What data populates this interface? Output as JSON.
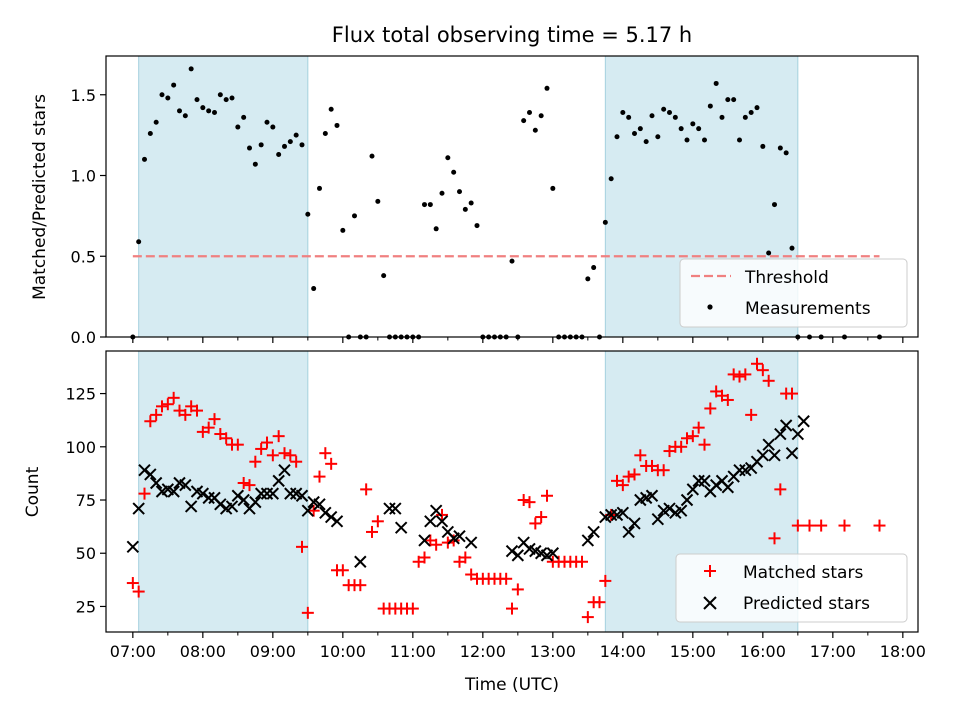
{
  "chart_data": [
    {
      "type": "scatter",
      "title": "Flux total observing time = 5.17 h",
      "xlabel": "",
      "ylabel": "Matched/Predicted stars",
      "xlim": [
        "06:37",
        "18:13"
      ],
      "ylim": [
        0,
        1.74
      ],
      "yticks": [
        0.0,
        0.5,
        1.0,
        1.5
      ],
      "ytick_labels": [
        "0.0",
        "0.5",
        "1.0",
        "1.5"
      ],
      "shaded_intervals": [
        [
          "07:05",
          "09:30"
        ],
        [
          "13:45",
          "16:30"
        ]
      ],
      "legend": {
        "position": "lower-right",
        "entries": [
          "Threshold",
          "Measurements"
        ]
      },
      "threshold": {
        "name": "Threshold",
        "y": 0.5,
        "x_range": [
          "07:00",
          "17:40"
        ]
      },
      "series": [
        {
          "name": "Measurements",
          "x": [
            "07:00",
            "07:05",
            "07:10",
            "07:15",
            "07:20",
            "07:25",
            "07:30",
            "07:35",
            "07:40",
            "07:45",
            "07:50",
            "07:55",
            "08:00",
            "08:05",
            "08:10",
            "08:15",
            "08:20",
            "08:25",
            "08:30",
            "08:35",
            "08:40",
            "08:45",
            "08:50",
            "08:55",
            "09:00",
            "09:05",
            "09:10",
            "09:15",
            "09:20",
            "09:25",
            "09:30",
            "09:35",
            "09:40",
            "09:45",
            "09:50",
            "09:55",
            "10:00",
            "10:05",
            "10:10",
            "10:15",
            "10:20",
            "10:25",
            "10:30",
            "10:35",
            "10:40",
            "10:45",
            "10:50",
            "10:55",
            "11:00",
            "11:05",
            "11:10",
            "11:15",
            "11:20",
            "11:25",
            "11:30",
            "11:35",
            "11:40",
            "11:45",
            "11:50",
            "11:55",
            "12:00",
            "12:05",
            "12:10",
            "12:15",
            "12:20",
            "12:25",
            "12:30",
            "12:35",
            "12:40",
            "12:45",
            "12:50",
            "12:55",
            "13:00",
            "13:05",
            "13:10",
            "13:15",
            "13:20",
            "13:25",
            "13:30",
            "13:35",
            "13:40",
            "13:45",
            "13:50",
            "13:55",
            "14:00",
            "14:05",
            "14:10",
            "14:15",
            "14:20",
            "14:25",
            "14:30",
            "14:35",
            "14:40",
            "14:45",
            "14:50",
            "14:55",
            "15:00",
            "15:05",
            "15:10",
            "15:15",
            "15:20",
            "15:25",
            "15:30",
            "15:35",
            "15:40",
            "15:45",
            "15:50",
            "15:55",
            "16:00",
            "16:05",
            "16:10",
            "16:15",
            "16:20",
            "16:25",
            "16:30",
            "16:40",
            "16:50",
            "17:10",
            "17:40"
          ],
          "y": [
            0.0,
            0.59,
            1.1,
            1.26,
            1.33,
            1.5,
            1.48,
            1.56,
            1.4,
            1.37,
            1.66,
            1.47,
            1.42,
            1.4,
            1.39,
            1.5,
            1.47,
            1.48,
            1.3,
            1.36,
            1.17,
            1.07,
            1.19,
            1.33,
            1.3,
            1.13,
            1.18,
            1.21,
            1.25,
            1.19,
            0.76,
            0.3,
            0.92,
            1.26,
            1.41,
            1.31,
            0.66,
            0.0,
            0.75,
            0.0,
            0.0,
            1.12,
            0.84,
            0.38,
            0.0,
            0.0,
            0.0,
            0.0,
            0.0,
            0.0,
            0.82,
            0.82,
            0.67,
            0.89,
            1.11,
            1.02,
            0.9,
            0.79,
            0.83,
            0.69,
            0.0,
            0.0,
            0.0,
            0.0,
            0.0,
            0.47,
            0.0,
            1.34,
            1.39,
            1.28,
            1.37,
            1.54,
            0.92,
            0.0,
            0.0,
            0.0,
            0.0,
            0.0,
            0.36,
            0.43,
            0.0,
            0.71,
            0.98,
            1.24,
            1.39,
            1.36,
            1.26,
            1.29,
            1.21,
            1.37,
            1.24,
            1.41,
            1.39,
            1.36,
            1.29,
            1.22,
            1.32,
            1.29,
            1.22,
            1.43,
            1.57,
            1.36,
            1.47,
            1.47,
            1.22,
            1.36,
            1.39,
            1.42,
            1.18,
            0.52,
            0.82,
            1.17,
            1.14,
            0.55,
            0.0,
            0.0,
            0.0,
            0.0,
            0.0
          ]
        }
      ]
    },
    {
      "type": "scatter",
      "title": "",
      "xlabel": "Time (UTC)",
      "ylabel": "Count",
      "xlim": [
        "06:37",
        "18:13"
      ],
      "ylim": [
        13,
        145
      ],
      "yticks": [
        25,
        50,
        75,
        100,
        125
      ],
      "ytick_labels": [
        "25",
        "50",
        "75",
        "100",
        "125"
      ],
      "xticks": [
        "07:00",
        "08:00",
        "09:00",
        "10:00",
        "11:00",
        "12:00",
        "13:00",
        "14:00",
        "15:00",
        "16:00",
        "17:00",
        "18:00"
      ],
      "shaded_intervals": [
        [
          "07:05",
          "09:30"
        ],
        [
          "13:45",
          "16:30"
        ]
      ],
      "legend": {
        "position": "lower-right",
        "entries": [
          "Matched stars",
          "Predicted stars"
        ]
      },
      "series": [
        {
          "name": "Matched stars",
          "marker": "+",
          "color": "#ff0000",
          "x": [
            "07:00",
            "07:05",
            "07:10",
            "07:15",
            "07:20",
            "07:25",
            "07:30",
            "07:35",
            "07:40",
            "07:45",
            "07:50",
            "07:55",
            "08:00",
            "08:05",
            "08:10",
            "08:15",
            "08:20",
            "08:25",
            "08:30",
            "08:35",
            "08:40",
            "08:45",
            "08:50",
            "08:55",
            "09:00",
            "09:05",
            "09:10",
            "09:15",
            "09:20",
            "09:25",
            "09:30",
            "09:35",
            "09:40",
            "09:45",
            "09:50",
            "09:55",
            "10:00",
            "10:05",
            "10:10",
            "10:15",
            "10:20",
            "10:25",
            "10:30",
            "10:35",
            "10:40",
            "10:45",
            "10:50",
            "10:55",
            "11:00",
            "11:05",
            "11:10",
            "11:15",
            "11:20",
            "11:25",
            "11:30",
            "11:35",
            "11:40",
            "11:45",
            "11:50",
            "11:55",
            "12:00",
            "12:05",
            "12:10",
            "12:15",
            "12:20",
            "12:25",
            "12:30",
            "12:35",
            "12:40",
            "12:45",
            "12:50",
            "12:55",
            "13:00",
            "13:05",
            "13:10",
            "13:15",
            "13:20",
            "13:25",
            "13:30",
            "13:35",
            "13:40",
            "13:45",
            "13:50",
            "13:55",
            "14:00",
            "14:05",
            "14:10",
            "14:15",
            "14:20",
            "14:25",
            "14:30",
            "14:35",
            "14:40",
            "14:45",
            "14:50",
            "14:55",
            "15:00",
            "15:05",
            "15:10",
            "15:15",
            "15:20",
            "15:25",
            "15:30",
            "15:35",
            "15:40",
            "15:45",
            "15:50",
            "15:55",
            "16:00",
            "16:05",
            "16:10",
            "16:15",
            "16:20",
            "16:25",
            "16:30",
            "16:40",
            "16:50",
            "17:10",
            "17:40"
          ],
          "y": [
            36,
            32,
            78,
            112,
            115,
            119,
            120,
            123,
            117,
            115,
            119,
            117,
            107,
            109,
            113,
            106,
            104,
            101,
            101,
            83,
            82,
            93,
            99,
            102,
            96,
            105,
            97,
            96,
            93,
            53,
            22,
            70,
            86,
            97,
            92,
            42,
            42,
            35,
            35,
            35,
            80,
            60,
            65,
            24,
            24,
            24,
            24,
            24,
            24,
            46,
            48,
            56,
            54,
            68,
            55,
            56,
            46,
            48,
            40,
            38,
            38,
            38,
            38,
            38,
            38,
            24,
            33,
            75,
            74,
            64,
            67,
            77,
            46,
            46,
            46,
            46,
            46,
            46,
            20,
            27,
            27,
            37,
            68,
            84,
            82,
            86,
            87,
            96,
            91,
            91,
            89,
            89,
            98,
            100,
            100,
            104,
            105,
            109,
            101,
            118,
            126,
            124,
            122,
            134,
            133,
            134,
            115,
            139,
            136,
            131,
            57,
            80,
            125,
            125,
            63,
            63,
            63,
            63,
            63
          ]
        },
        {
          "name": "Predicted stars",
          "marker": "x",
          "color": "#000000",
          "x": [
            "07:00",
            "07:05",
            "07:10",
            "07:15",
            "07:20",
            "07:25",
            "07:30",
            "07:35",
            "07:40",
            "07:45",
            "07:50",
            "07:55",
            "08:00",
            "08:05",
            "08:10",
            "08:15",
            "08:20",
            "08:25",
            "08:30",
            "08:35",
            "08:40",
            "08:45",
            "08:50",
            "08:55",
            "09:00",
            "09:05",
            "09:10",
            "09:15",
            "09:20",
            "09:25",
            "09:30",
            "09:35",
            "09:40",
            "09:45",
            "09:50",
            "09:55",
            "10:15",
            "10:40",
            "10:45",
            "10:50",
            "11:10",
            "11:15",
            "11:20",
            "11:25",
            "11:30",
            "11:35",
            "11:40",
            "11:50",
            "12:25",
            "12:30",
            "12:35",
            "12:40",
            "12:45",
            "12:50",
            "12:55",
            "13:00",
            "13:30",
            "13:35",
            "13:45",
            "13:50",
            "13:55",
            "14:00",
            "14:05",
            "14:10",
            "14:15",
            "14:20",
            "14:25",
            "14:30",
            "14:35",
            "14:40",
            "14:45",
            "14:50",
            "14:55",
            "15:00",
            "15:05",
            "15:10",
            "15:15",
            "15:20",
            "15:25",
            "15:30",
            "15:35",
            "15:40",
            "15:45",
            "15:50",
            "15:55",
            "16:00",
            "16:05",
            "16:10",
            "16:15",
            "16:20",
            "16:25",
            "16:30",
            "16:35"
          ],
          "y": [
            53,
            71,
            89,
            87,
            83,
            79,
            80,
            79,
            83,
            82,
            72,
            79,
            78,
            76,
            76,
            73,
            71,
            72,
            77,
            75,
            71,
            74,
            78,
            78,
            78,
            84,
            89,
            78,
            78,
            77,
            70,
            74,
            73,
            69,
            67,
            65,
            46,
            71,
            71,
            62,
            56,
            65,
            70,
            65,
            60,
            57,
            58,
            55,
            51,
            49,
            55,
            52,
            51,
            50,
            49,
            50,
            56,
            60,
            67,
            68,
            68,
            69,
            60,
            64,
            75,
            76,
            77,
            66,
            70,
            71,
            69,
            70,
            75,
            80,
            84,
            84,
            79,
            82,
            84,
            81,
            86,
            89,
            89,
            90,
            93,
            96,
            101,
            96,
            106,
            110,
            97,
            106,
            112
          ]
        }
      ]
    }
  ]
}
